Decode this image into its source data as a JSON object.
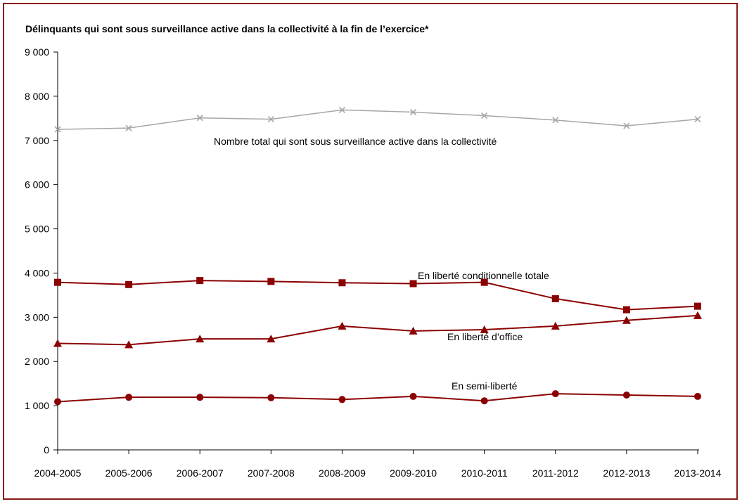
{
  "chart_data": {
    "type": "line",
    "title": "Délinquants qui sont sous surveillance active dans la collectivité à la fin de l’exercice*",
    "xlabel": "",
    "ylabel": "",
    "categories": [
      "2004-2005",
      "2005-2006",
      "2006-2007",
      "2007-2008",
      "2008-2009",
      "2009-2010",
      "2010-2011",
      "2011-2012",
      "2012-2013",
      "2013-2014"
    ],
    "ylim": [
      0,
      9000
    ],
    "yticks": [
      {
        "value": 0,
        "label": "0"
      },
      {
        "value": 1000,
        "label": "1 000"
      },
      {
        "value": 2000,
        "label": "2 000"
      },
      {
        "value": 3000,
        "label": "3 000"
      },
      {
        "value": 4000,
        "label": "4 000"
      },
      {
        "value": 5000,
        "label": "5 000"
      },
      {
        "value": 6000,
        "label": "6 000"
      },
      {
        "value": 7000,
        "label": "7 000"
      },
      {
        "value": 8000,
        "label": "8 000"
      },
      {
        "value": 9000,
        "label": "9 000"
      }
    ],
    "grid": false,
    "legend": "inline annotations",
    "series": [
      {
        "id": "total",
        "name": "Nombre total qui sont sous surveillance active dans la collectivité",
        "marker": "x",
        "color": "#a6a6a6",
        "values": [
          7250,
          7280,
          7510,
          7480,
          7690,
          7640,
          7560,
          7460,
          7330,
          7480
        ]
      },
      {
        "id": "conditionnelle",
        "name": "En liberté conditionnelle totale",
        "marker": "square",
        "color": "#8b0000",
        "values": [
          3790,
          3740,
          3830,
          3810,
          3780,
          3760,
          3790,
          3420,
          3170,
          3250
        ]
      },
      {
        "id": "office",
        "name": "En liberté d’office",
        "marker": "triangle",
        "color": "#8b0000",
        "values": [
          2410,
          2380,
          2510,
          2510,
          2800,
          2690,
          2720,
          2800,
          2930,
          3040
        ]
      },
      {
        "id": "semi",
        "name": "En semi-liberté",
        "marker": "circle",
        "color": "#8b0000",
        "values": [
          1090,
          1190,
          1190,
          1180,
          1140,
          1210,
          1110,
          1270,
          1240,
          1210
        ]
      }
    ]
  }
}
